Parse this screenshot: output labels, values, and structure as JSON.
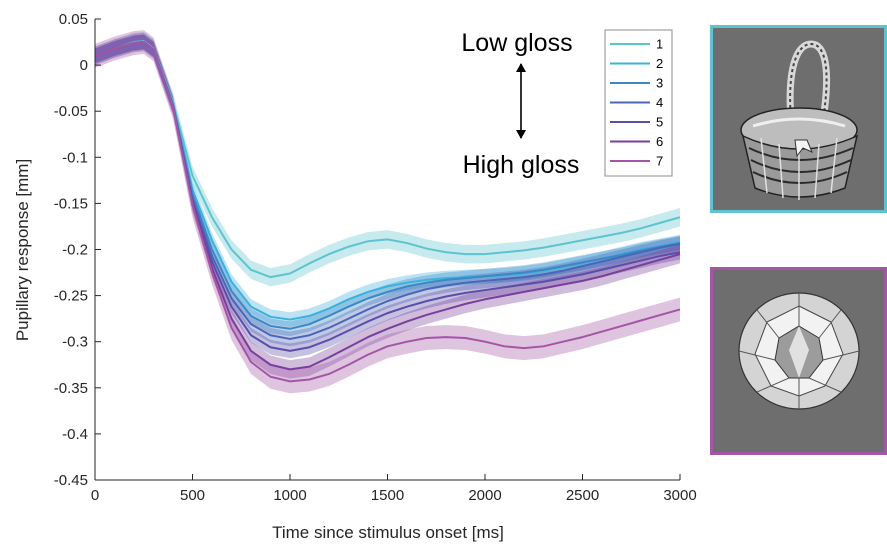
{
  "chart_data": {
    "type": "line",
    "title": "",
    "xlabel": "Time since stimulus onset [ms]",
    "ylabel": "Pupillary response [mm]",
    "xlim": [
      0,
      3000
    ],
    "ylim": [
      -0.45,
      0.05
    ],
    "xticks": [
      "0",
      "500",
      "1000",
      "1500",
      "2000",
      "2500",
      "3000"
    ],
    "yticks": [
      "0.05",
      "0",
      "-0.05",
      "-0.1",
      "-0.15",
      "-0.2",
      "-0.25",
      "-0.3",
      "-0.35",
      "-0.4",
      "-0.45"
    ],
    "grid": false,
    "legend_position": "top-right",
    "annotations": {
      "top": "Low gloss",
      "bottom": "High gloss"
    },
    "x": [
      0,
      100,
      200,
      250,
      300,
      400,
      500,
      600,
      700,
      800,
      900,
      1000,
      1100,
      1200,
      1300,
      1400,
      1500,
      1600,
      1700,
      1800,
      1900,
      2000,
      2100,
      2200,
      2300,
      2400,
      2500,
      2600,
      2700,
      2800,
      2900,
      3000
    ],
    "series": [
      {
        "name": "1",
        "color": "#5dc4cf",
        "values": [
          0.01,
          0.018,
          0.025,
          0.026,
          0.018,
          -0.04,
          -0.12,
          -0.165,
          -0.2,
          -0.222,
          -0.23,
          -0.226,
          -0.215,
          -0.205,
          -0.197,
          -0.191,
          -0.189,
          -0.193,
          -0.199,
          -0.203,
          -0.205,
          -0.205,
          -0.203,
          -0.201,
          -0.198,
          -0.194,
          -0.19,
          -0.186,
          -0.182,
          -0.177,
          -0.171,
          -0.165
        ],
        "band": 0.01
      },
      {
        "name": "2",
        "color": "#3db0dc",
        "values": [
          0.01,
          0.018,
          0.024,
          0.025,
          0.017,
          -0.042,
          -0.135,
          -0.19,
          -0.235,
          -0.262,
          -0.273,
          -0.276,
          -0.272,
          -0.264,
          -0.254,
          -0.246,
          -0.24,
          -0.236,
          -0.233,
          -0.231,
          -0.23,
          -0.229,
          -0.228,
          -0.226,
          -0.223,
          -0.219,
          -0.215,
          -0.21,
          -0.205,
          -0.2,
          -0.196,
          -0.192
        ],
        "band": 0.008
      },
      {
        "name": "3",
        "color": "#3c87c6",
        "values": [
          0.01,
          0.018,
          0.024,
          0.025,
          0.017,
          -0.043,
          -0.14,
          -0.2,
          -0.245,
          -0.272,
          -0.283,
          -0.286,
          -0.281,
          -0.272,
          -0.262,
          -0.253,
          -0.246,
          -0.24,
          -0.236,
          -0.233,
          -0.231,
          -0.229,
          -0.227,
          -0.225,
          -0.222,
          -0.218,
          -0.214,
          -0.21,
          -0.206,
          -0.201,
          -0.197,
          -0.193
        ],
        "band": 0.008
      },
      {
        "name": "4",
        "color": "#4b66b7",
        "values": [
          0.01,
          0.018,
          0.024,
          0.025,
          0.017,
          -0.044,
          -0.145,
          -0.207,
          -0.253,
          -0.281,
          -0.293,
          -0.297,
          -0.293,
          -0.285,
          -0.275,
          -0.265,
          -0.256,
          -0.249,
          -0.243,
          -0.239,
          -0.236,
          -0.234,
          -0.232,
          -0.23,
          -0.227,
          -0.223,
          -0.218,
          -0.213,
          -0.208,
          -0.203,
          -0.198,
          -0.194
        ],
        "band": 0.008
      },
      {
        "name": "5",
        "color": "#5a4ea8",
        "values": [
          0.01,
          0.018,
          0.024,
          0.025,
          0.017,
          -0.044,
          -0.148,
          -0.213,
          -0.262,
          -0.293,
          -0.306,
          -0.31,
          -0.306,
          -0.298,
          -0.288,
          -0.278,
          -0.269,
          -0.262,
          -0.256,
          -0.251,
          -0.247,
          -0.244,
          -0.241,
          -0.238,
          -0.235,
          -0.231,
          -0.227,
          -0.222,
          -0.217,
          -0.212,
          -0.207,
          -0.203
        ],
        "band": 0.008
      },
      {
        "name": "6",
        "color": "#7a3f9c",
        "values": [
          0.01,
          0.018,
          0.024,
          0.025,
          0.017,
          -0.045,
          -0.15,
          -0.22,
          -0.275,
          -0.31,
          -0.325,
          -0.33,
          -0.327,
          -0.317,
          -0.306,
          -0.295,
          -0.286,
          -0.278,
          -0.271,
          -0.265,
          -0.259,
          -0.254,
          -0.25,
          -0.246,
          -0.242,
          -0.238,
          -0.234,
          -0.229,
          -0.223,
          -0.217,
          -0.211,
          -0.205
        ],
        "band": 0.01
      },
      {
        "name": "7",
        "color": "#a455a6",
        "values": [
          0.01,
          0.018,
          0.024,
          0.025,
          0.017,
          -0.045,
          -0.152,
          -0.225,
          -0.285,
          -0.322,
          -0.338,
          -0.343,
          -0.341,
          -0.335,
          -0.325,
          -0.314,
          -0.305,
          -0.3,
          -0.296,
          -0.295,
          -0.296,
          -0.3,
          -0.305,
          -0.307,
          -0.305,
          -0.3,
          -0.295,
          -0.289,
          -0.283,
          -0.277,
          -0.271,
          -0.265
        ],
        "band": 0.013
      }
    ]
  },
  "thumbnails": [
    {
      "name": "basket",
      "border_color": "#5dc4cf"
    },
    {
      "name": "diamond",
      "border_color": "#a455a6"
    }
  ]
}
